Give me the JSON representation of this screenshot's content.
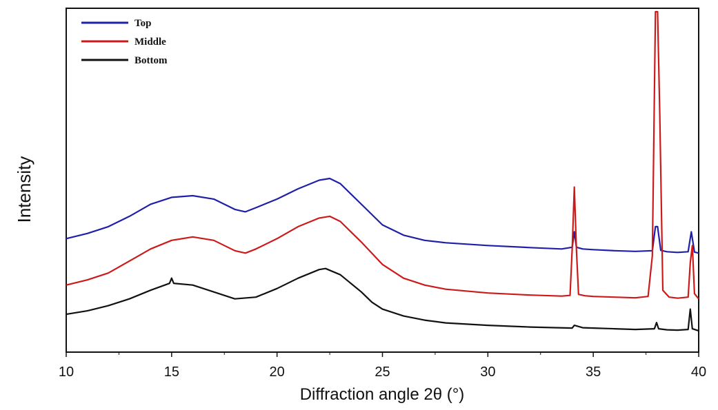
{
  "chart_data": {
    "type": "line",
    "title": "",
    "xlabel": "Diffraction angle 2θ (°)",
    "ylabel": "Intensity",
    "xlim": [
      10,
      40
    ],
    "ylim": [
      0,
      100
    ],
    "x_ticks": [
      10,
      15,
      20,
      25,
      30,
      35,
      40
    ],
    "y_ticks_shown": false,
    "grid": false,
    "legend": {
      "placement": "top-left"
    },
    "series": [
      {
        "name": "Top",
        "color": "#1f1fa8",
        "points": [
          [
            10,
            33.0
          ],
          [
            11,
            34.5
          ],
          [
            12,
            36.5
          ],
          [
            13,
            39.5
          ],
          [
            14,
            43.0
          ],
          [
            15,
            45.0
          ],
          [
            16,
            45.5
          ],
          [
            17,
            44.5
          ],
          [
            18,
            41.5
          ],
          [
            18.5,
            40.8
          ],
          [
            19,
            42.0
          ],
          [
            20,
            44.5
          ],
          [
            21,
            47.5
          ],
          [
            22,
            50.0
          ],
          [
            22.5,
            50.5
          ],
          [
            23,
            49.0
          ],
          [
            24,
            43.0
          ],
          [
            25,
            37.0
          ],
          [
            26,
            34.0
          ],
          [
            27,
            32.5
          ],
          [
            28,
            31.8
          ],
          [
            30,
            31.0
          ],
          [
            32,
            30.4
          ],
          [
            33.5,
            30.0
          ],
          [
            34.0,
            30.5
          ],
          [
            34.1,
            35.0
          ],
          [
            34.2,
            30.5
          ],
          [
            34.5,
            30.0
          ],
          [
            35,
            29.8
          ],
          [
            36,
            29.5
          ],
          [
            37,
            29.3
          ],
          [
            37.8,
            29.5
          ],
          [
            37.95,
            36.5
          ],
          [
            38.05,
            36.5
          ],
          [
            38.2,
            29.6
          ],
          [
            38.5,
            29.2
          ],
          [
            39,
            29.0
          ],
          [
            39.5,
            29.2
          ],
          [
            39.65,
            35.0
          ],
          [
            39.8,
            29.1
          ],
          [
            40,
            28.8
          ]
        ]
      },
      {
        "name": "Middle",
        "color": "#cc1a1a",
        "points": [
          [
            10,
            19.5
          ],
          [
            11,
            21.0
          ],
          [
            12,
            23.0
          ],
          [
            13,
            26.5
          ],
          [
            14,
            30.0
          ],
          [
            15,
            32.5
          ],
          [
            16,
            33.5
          ],
          [
            17,
            32.5
          ],
          [
            18,
            29.5
          ],
          [
            18.5,
            28.8
          ],
          [
            19,
            30.0
          ],
          [
            20,
            33.0
          ],
          [
            21,
            36.5
          ],
          [
            22,
            39.0
          ],
          [
            22.5,
            39.5
          ],
          [
            23,
            38.0
          ],
          [
            24,
            32.0
          ],
          [
            25,
            25.5
          ],
          [
            26,
            21.5
          ],
          [
            27,
            19.5
          ],
          [
            28,
            18.3
          ],
          [
            30,
            17.2
          ],
          [
            32,
            16.6
          ],
          [
            33.5,
            16.3
          ],
          [
            33.9,
            16.5
          ],
          [
            34.0,
            30.0
          ],
          [
            34.1,
            48.0
          ],
          [
            34.2,
            30.0
          ],
          [
            34.3,
            16.8
          ],
          [
            34.6,
            16.4
          ],
          [
            35,
            16.2
          ],
          [
            36,
            16.0
          ],
          [
            37,
            15.8
          ],
          [
            37.6,
            16.2
          ],
          [
            37.8,
            28.0
          ],
          [
            37.95,
            99.0
          ],
          [
            38.05,
            99.0
          ],
          [
            38.15,
            70.0
          ],
          [
            38.3,
            18.0
          ],
          [
            38.6,
            16.0
          ],
          [
            39,
            15.7
          ],
          [
            39.5,
            16.0
          ],
          [
            39.6,
            26.0
          ],
          [
            39.7,
            31.0
          ],
          [
            39.8,
            17.0
          ],
          [
            40,
            15.5
          ]
        ]
      },
      {
        "name": "Bottom",
        "color": "#111111",
        "points": [
          [
            10,
            11.0
          ],
          [
            11,
            12.0
          ],
          [
            12,
            13.5
          ],
          [
            13,
            15.5
          ],
          [
            14,
            18.0
          ],
          [
            14.9,
            20.0
          ],
          [
            15,
            21.5
          ],
          [
            15.1,
            20.0
          ],
          [
            16,
            19.5
          ],
          [
            17,
            17.5
          ],
          [
            18,
            15.5
          ],
          [
            19,
            16.0
          ],
          [
            20,
            18.5
          ],
          [
            21,
            21.5
          ],
          [
            22,
            24.0
          ],
          [
            22.3,
            24.3
          ],
          [
            23,
            22.5
          ],
          [
            24,
            17.5
          ],
          [
            24.5,
            14.5
          ],
          [
            25,
            12.5
          ],
          [
            26,
            10.5
          ],
          [
            27,
            9.3
          ],
          [
            28,
            8.5
          ],
          [
            30,
            7.8
          ],
          [
            32,
            7.3
          ],
          [
            34,
            7.0
          ],
          [
            34.1,
            7.8
          ],
          [
            34.5,
            7.1
          ],
          [
            35,
            7.0
          ],
          [
            36,
            6.8
          ],
          [
            37,
            6.6
          ],
          [
            37.9,
            6.8
          ],
          [
            38.0,
            8.6
          ],
          [
            38.1,
            6.8
          ],
          [
            38.5,
            6.5
          ],
          [
            39,
            6.4
          ],
          [
            39.5,
            6.6
          ],
          [
            39.6,
            12.5
          ],
          [
            39.7,
            6.8
          ],
          [
            40,
            6.2
          ]
        ]
      }
    ]
  }
}
